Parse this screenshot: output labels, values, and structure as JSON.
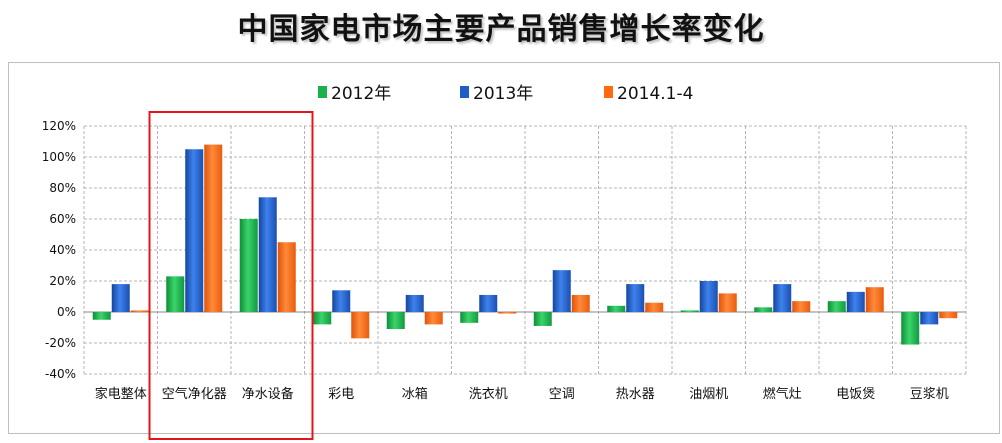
{
  "page": {
    "title": "中国家电市场主要产品销售增长率变化"
  },
  "colors": {
    "s2012": "#1cb04a",
    "s2013": "#1f5ec7",
    "s2014": "#ff6a10",
    "highlight": "#e3151a",
    "grid": "#b5b5b5"
  },
  "chart_data": {
    "type": "bar",
    "title": "中国家电市场主要产品销售增长率变化",
    "categories": [
      "家电整体",
      "空气净化器",
      "净水设备",
      "彩电",
      "冰箱",
      "洗衣机",
      "空调",
      "热水器",
      "油烟机",
      "燃气灶",
      "电饭煲",
      "豆浆机"
    ],
    "series": [
      {
        "name": "2012年",
        "values": [
          -5,
          23,
          60,
          -8,
          -11,
          -7,
          -9,
          4,
          1,
          3,
          7,
          -21
        ]
      },
      {
        "name": "2013年",
        "values": [
          18,
          105,
          74,
          14,
          11,
          11,
          27,
          18,
          20,
          18,
          13,
          -8
        ]
      },
      {
        "name": "2014.1-4",
        "values": [
          1,
          108,
          45,
          -17,
          -8,
          -1,
          11,
          6,
          12,
          7,
          16,
          -4
        ]
      }
    ],
    "yticks": [
      "120%",
      "100%",
      "80%",
      "60%",
      "40%",
      "20%",
      "0%",
      "-20%",
      "-40%"
    ],
    "ylim": [
      -40,
      120
    ],
    "grid": true,
    "legend_position": "top-center",
    "highlighted_categories": [
      "空气净化器",
      "净水设备"
    ]
  }
}
